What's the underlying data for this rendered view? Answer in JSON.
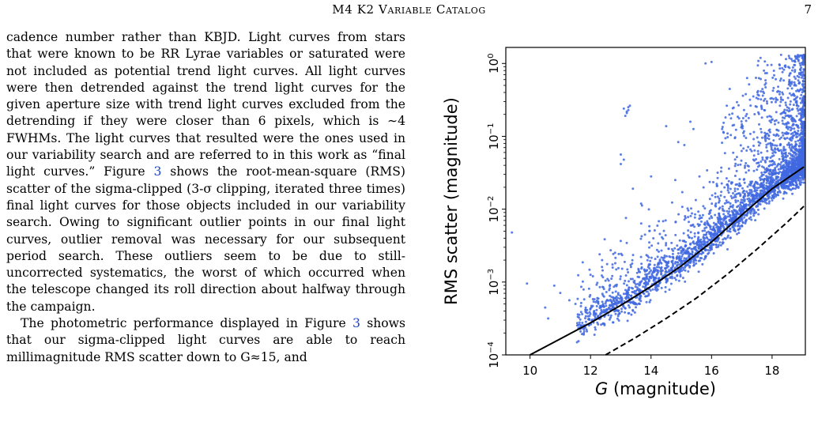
{
  "header": {
    "running_head": "M4 K2 Variable Catalog",
    "page_number": "7"
  },
  "body": {
    "paragraph_1": {
      "part_a": "cadence number rather than KBJD. Light curves from stars that were known to be RR Lyrae variables or saturated were not included as potential trend light curves. All light curves were then detrended against the trend light curves for the given aperture size with trend light curves excluded from the detrending if they were closer than 6 pixels, which is ∼4 FWHMs. The light curves that resulted were the ones used in our variability search and are referred to in this work as “final light curves.” ",
      "figure_word": "Figure ",
      "figure_ref": "3",
      "part_b": " shows the root-mean-square (RMS) scatter of the sigma-clipped (3-σ clipping, iterated three times) final light curves for those objects included in our variability search. Owing to significant outlier points in our final light curves, outlier removal was necessary for our subsequent period search. These outliers seem to be due to still-uncorrected systematics, the worst of which occurred when the telescope changed its roll direction about halfway through the campaign."
    },
    "paragraph_2": {
      "part_a": "The photometric performance displayed in Figure ",
      "figure_ref": "3",
      "part_b": " shows that our sigma-clipped light curves are able to reach millimagnitude RMS scatter down to G≈15, and"
    }
  },
  "chart_data": {
    "type": "scatter",
    "xlabel_italic": "G",
    "xlabel_rest": " (magnitude)",
    "ylabel": "RMS scatter (magnitude)",
    "xlim": [
      9.2,
      19.1
    ],
    "ylim_log10": [
      -4,
      0.22
    ],
    "y_scale": "log",
    "x_ticks": [
      "10",
      "12",
      "14",
      "16",
      "18"
    ],
    "x_tick_values": [
      10,
      12,
      14,
      16,
      18
    ],
    "y_ticks": [
      {
        "base": "10",
        "exp": "−4",
        "log": -4
      },
      {
        "base": "10",
        "exp": "−3",
        "log": -3
      },
      {
        "base": "10",
        "exp": "−2",
        "log": -2
      },
      {
        "base": "10",
        "exp": "−1",
        "log": -1
      },
      {
        "base": "10",
        "exp": "0",
        "log": 0
      }
    ],
    "point_color": "#4169e1",
    "grid": false,
    "solid_curve": [
      [
        10.0,
        -4.0
      ],
      [
        11.0,
        -3.78
      ],
      [
        12.0,
        -3.56
      ],
      [
        13.0,
        -3.32
      ],
      [
        14.0,
        -3.06
      ],
      [
        15.0,
        -2.78
      ],
      [
        16.0,
        -2.45
      ],
      [
        17.0,
        -2.08
      ],
      [
        18.0,
        -1.72
      ],
      [
        19.05,
        -1.42
      ]
    ],
    "dashed_curve": [
      [
        12.5,
        -4.0
      ],
      [
        13.5,
        -3.76
      ],
      [
        14.5,
        -3.5
      ],
      [
        15.5,
        -3.22
      ],
      [
        16.5,
        -2.9
      ],
      [
        17.5,
        -2.55
      ],
      [
        18.5,
        -2.18
      ],
      [
        19.05,
        -1.96
      ]
    ]
  }
}
